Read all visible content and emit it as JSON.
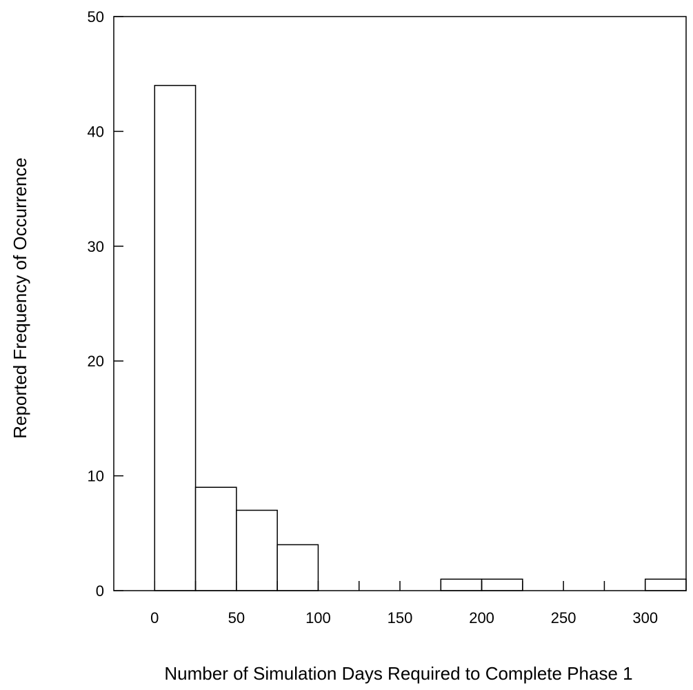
{
  "chart_data": {
    "type": "bar",
    "title": "",
    "xlabel": "Number of Simulation Days Required to Complete Phase 1",
    "ylabel": "Reported Frequency of Occurrence",
    "xlim": [
      -25,
      325
    ],
    "ylim": [
      0,
      50
    ],
    "bin_width": 25,
    "bins": [
      {
        "start": 0,
        "end": 25,
        "value": 44
      },
      {
        "start": 25,
        "end": 50,
        "value": 9
      },
      {
        "start": 50,
        "end": 75,
        "value": 7
      },
      {
        "start": 75,
        "end": 100,
        "value": 4
      },
      {
        "start": 100,
        "end": 125,
        "value": 0
      },
      {
        "start": 125,
        "end": 150,
        "value": 0
      },
      {
        "start": 150,
        "end": 175,
        "value": 0
      },
      {
        "start": 175,
        "end": 200,
        "value": 1
      },
      {
        "start": 200,
        "end": 225,
        "value": 1
      },
      {
        "start": 225,
        "end": 250,
        "value": 0
      },
      {
        "start": 250,
        "end": 275,
        "value": 0
      },
      {
        "start": 275,
        "end": 300,
        "value": 0
      },
      {
        "start": 300,
        "end": 325,
        "value": 1
      }
    ],
    "x_ticks": [
      0,
      25,
      50,
      75,
      100,
      125,
      150,
      175,
      200,
      225,
      250,
      275,
      300
    ],
    "x_tick_labels": [
      {
        "value": 0,
        "label": "0"
      },
      {
        "value": 50,
        "label": "50"
      },
      {
        "value": 100,
        "label": "100"
      },
      {
        "value": 150,
        "label": "150"
      },
      {
        "value": 200,
        "label": "200"
      },
      {
        "value": 250,
        "label": "250"
      },
      {
        "value": 300,
        "label": "300"
      }
    ],
    "y_ticks": [
      0,
      10,
      20,
      30,
      40,
      50
    ],
    "y_tick_labels": [
      "0",
      "10",
      "20",
      "30",
      "40",
      "50"
    ],
    "grid": false,
    "legend": "none",
    "colors": {
      "bar_fill": "#ffffff",
      "bar_stroke": "#000000",
      "axis": "#000000"
    }
  }
}
